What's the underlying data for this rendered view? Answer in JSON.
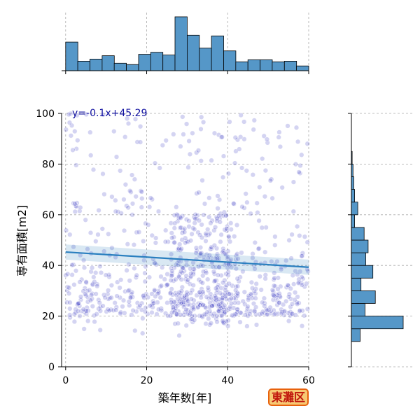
{
  "chart_data": {
    "type": "scatter",
    "xlabel": "築年数[年]",
    "ylabel": "専有面積[m2]",
    "xlim": [
      -1,
      60
    ],
    "ylim": [
      0,
      100
    ],
    "xticks": [
      0,
      20,
      40,
      60
    ],
    "yticks": [
      0,
      20,
      40,
      60,
      80,
      100
    ],
    "grid": true,
    "point_color": "#2a28c0",
    "regression": {
      "label": "y=-0.1x+45.29",
      "label_color": "#1010a0",
      "slope": -0.1,
      "intercept": 45.29,
      "color": "#2a7fbf"
    },
    "hist_color": "#5597c8",
    "hist_top": {
      "bin_width": 3.0,
      "bin_start": 0,
      "counts": [
        42,
        14,
        17,
        22,
        11,
        9,
        24,
        27,
        23,
        79,
        52,
        33,
        51,
        29,
        13,
        16,
        16,
        13,
        14,
        7
      ]
    },
    "hist_right": {
      "bin_width": 5,
      "bin_start": 10,
      "counts": [
        11,
        65,
        17,
        30,
        12,
        27,
        18,
        21,
        16,
        4,
        8,
        4,
        3,
        2,
        1
      ]
    }
  },
  "badge": {
    "text": "東灘区",
    "bg": "#f7c873",
    "border": "#e8610c",
    "color": "#c0160c"
  }
}
